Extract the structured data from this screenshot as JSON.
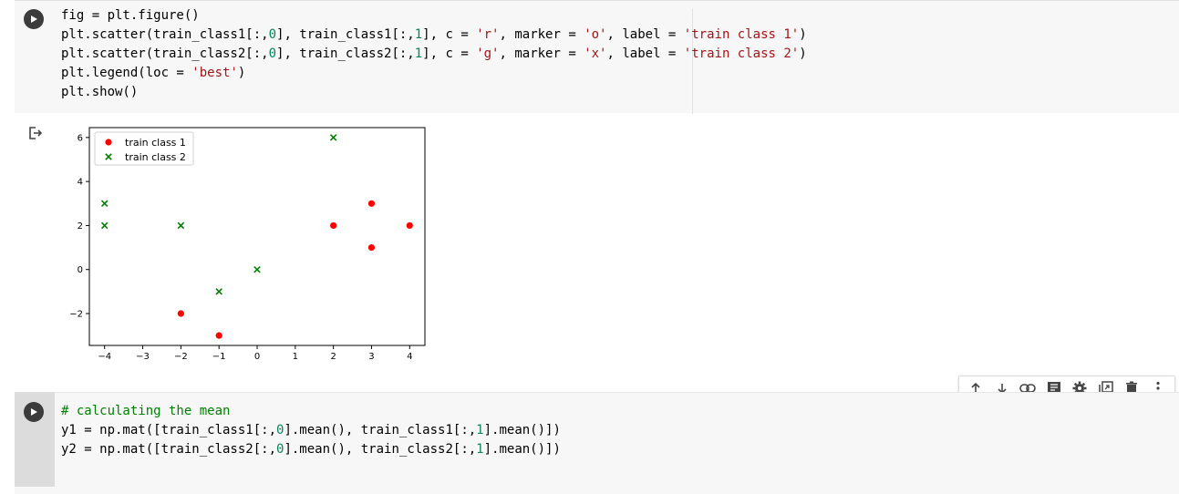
{
  "cell1": {
    "code_lines": [
      [
        {
          "t": "fig = plt.figure()",
          "c": ""
        }
      ],
      [
        {
          "t": "plt.scatter(train_class1[:,",
          "c": ""
        },
        {
          "t": "0",
          "c": "num"
        },
        {
          "t": "], train_class1[:,",
          "c": ""
        },
        {
          "t": "1",
          "c": "num"
        },
        {
          "t": "], c = ",
          "c": ""
        },
        {
          "t": "'r'",
          "c": "str"
        },
        {
          "t": ", marker = ",
          "c": ""
        },
        {
          "t": "'o'",
          "c": "str"
        },
        {
          "t": ", label = ",
          "c": ""
        },
        {
          "t": "'train class 1'",
          "c": "str"
        },
        {
          "t": ")",
          "c": ""
        }
      ],
      [
        {
          "t": "plt.scatter(train_class2[:,",
          "c": ""
        },
        {
          "t": "0",
          "c": "num"
        },
        {
          "t": "], train_class2[:,",
          "c": ""
        },
        {
          "t": "1",
          "c": "num"
        },
        {
          "t": "], c = ",
          "c": ""
        },
        {
          "t": "'g'",
          "c": "str"
        },
        {
          "t": ", marker = ",
          "c": ""
        },
        {
          "t": "'x'",
          "c": "str"
        },
        {
          "t": ", label = ",
          "c": ""
        },
        {
          "t": "'train class 2'",
          "c": "str"
        },
        {
          "t": ")",
          "c": ""
        }
      ],
      [
        {
          "t": "plt.legend(loc = ",
          "c": ""
        },
        {
          "t": "'best'",
          "c": "str"
        },
        {
          "t": ")",
          "c": ""
        }
      ],
      [
        {
          "t": "plt.show()",
          "c": ""
        }
      ]
    ]
  },
  "cell2": {
    "code_lines": [
      [
        {
          "t": "# calculating the mean",
          "c": "cmt"
        }
      ],
      [
        {
          "t": "y1 = np.mat([train_class1[:,",
          "c": ""
        },
        {
          "t": "0",
          "c": "num"
        },
        {
          "t": "].mean(), train_class1[:,",
          "c": ""
        },
        {
          "t": "1",
          "c": "num"
        },
        {
          "t": "].mean()])",
          "c": ""
        }
      ],
      [
        {
          "t": "y2 = np.mat([train_class2[:,",
          "c": ""
        },
        {
          "t": "0",
          "c": "num"
        },
        {
          "t": "].mean(), train_class2[:,",
          "c": ""
        },
        {
          "t": "1",
          "c": "num"
        },
        {
          "t": "].mean()])",
          "c": ""
        }
      ]
    ]
  },
  "toolbar": {
    "icons": [
      "arrow-up-icon",
      "arrow-down-icon",
      "link-icon",
      "comment-icon",
      "gear-icon",
      "mirror-cell-icon",
      "trash-icon",
      "more-vert-icon"
    ]
  },
  "chart_data": {
    "type": "scatter",
    "xlim": [
      -4.4,
      4.4
    ],
    "ylim": [
      -3.45,
      6.45
    ],
    "xticks": [
      -4,
      -3,
      -2,
      -1,
      0,
      1,
      2,
      3,
      4
    ],
    "yticks": [
      -2,
      0,
      2,
      4,
      6
    ],
    "xtick_labels": [
      "−4",
      "−3",
      "−2",
      "−1",
      "0",
      "1",
      "2",
      "3",
      "4"
    ],
    "ytick_labels": [
      "−2",
      "0",
      "2",
      "4",
      "6"
    ],
    "grid": false,
    "legend_placement": "upper-left",
    "series": [
      {
        "name": "train class 1",
        "color": "#ff0000",
        "marker": "o",
        "x": [
          2,
          3,
          3,
          4,
          -2,
          -1
        ],
        "y": [
          2,
          3,
          1,
          2,
          -2,
          -3
        ]
      },
      {
        "name": "train class 2",
        "color": "#008000",
        "marker": "x",
        "x": [
          -4,
          -4,
          -2,
          -1,
          0,
          2
        ],
        "y": [
          3,
          2,
          2,
          -1,
          0,
          6
        ]
      }
    ]
  }
}
